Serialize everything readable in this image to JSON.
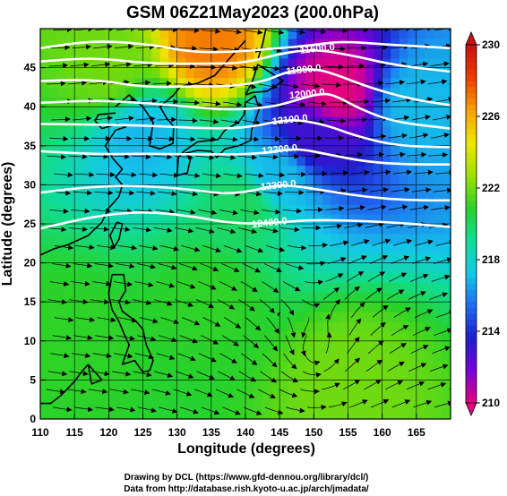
{
  "chart_data": {
    "type": "heatmap",
    "title": "GSM 06Z21May2023 (200.0hPa)",
    "xlabel": "Longitude (degrees)",
    "ylabel": "Latitude  (degrees)",
    "xlim": [
      110,
      170
    ],
    "ylim": [
      0,
      50
    ],
    "x_ticks": [
      "110",
      "115",
      "120",
      "125",
      "130",
      "135",
      "140",
      "145",
      "150",
      "155",
      "160",
      "165"
    ],
    "y_ticks": [
      "0",
      "5",
      "10",
      "15",
      "20",
      "25",
      "30",
      "35",
      "40",
      "45"
    ],
    "colorbar": {
      "min": 210,
      "max": 230,
      "ticks": [
        "210",
        "214",
        "218",
        "222",
        "226",
        "230"
      ],
      "palette": [
        "#e6007e",
        "#7a00d8",
        "#1e1ecc",
        "#1f6cf0",
        "#14c8e8",
        "#10dc96",
        "#28d22a",
        "#a0e000",
        "#ece600",
        "#f8a000",
        "#ec3c00",
        "#c81010"
      ]
    },
    "field_samples": [
      {
        "lon": 135,
        "lat": 48,
        "value": 227
      },
      {
        "lon": 120,
        "lat": 45,
        "value": 222
      },
      {
        "lon": 153,
        "lat": 42,
        "value": 210
      },
      {
        "lon": 150,
        "lat": 36,
        "value": 213
      },
      {
        "lon": 125,
        "lat": 36,
        "value": 217
      },
      {
        "lon": 165,
        "lat": 40,
        "value": 217
      },
      {
        "lon": 145,
        "lat": 31,
        "value": 217
      },
      {
        "lon": 140,
        "lat": 27,
        "value": 220
      },
      {
        "lon": 135,
        "lat": 15,
        "value": 221
      },
      {
        "lon": 155,
        "lat": 5,
        "value": 222
      },
      {
        "lon": 115,
        "lat": 10,
        "value": 221
      }
    ],
    "contour_labels": [
      "11600.0",
      "11800.0",
      "12000.0",
      "12100.0",
      "12200.0",
      "12300.0",
      "12400.0"
    ],
    "contours": [
      {
        "points": [
          [
            110,
            47.5
          ],
          [
            118,
            48.5
          ],
          [
            126,
            48
          ],
          [
            132,
            47
          ],
          [
            138,
            47
          ],
          [
            145,
            47.5
          ],
          [
            149,
            47.8
          ],
          [
            154,
            48.4
          ],
          [
            160,
            48
          ],
          [
            170,
            47.5
          ]
        ],
        "label": ""
      },
      {
        "points": [
          [
            110,
            45.8
          ],
          [
            118,
            46.3
          ],
          [
            126,
            45.5
          ],
          [
            134,
            45.5
          ],
          [
            140,
            45.6
          ],
          [
            145,
            46.8
          ],
          [
            150,
            47.4
          ],
          [
            156,
            46.5
          ],
          [
            162,
            45.3
          ],
          [
            170,
            44.5
          ]
        ],
        "label": "11600.0",
        "label_at": [
          150.5,
          47.5
        ]
      },
      {
        "points": [
          [
            110,
            43.3
          ],
          [
            118,
            43.5
          ],
          [
            125,
            42.5
          ],
          [
            132,
            42.6
          ],
          [
            138,
            42.6
          ],
          [
            143,
            43.3
          ],
          [
            146,
            44.5
          ],
          [
            150,
            44.9
          ],
          [
            153,
            44.2
          ],
          [
            158,
            42.5
          ],
          [
            164,
            41
          ],
          [
            170,
            40.2
          ]
        ],
        "label": "11800.0",
        "label_at": [
          148.5,
          44.8
        ]
      },
      {
        "points": [
          [
            110,
            40.5
          ],
          [
            118,
            40.8
          ],
          [
            125,
            40.5
          ],
          [
            132,
            40
          ],
          [
            137,
            39.6
          ],
          [
            142,
            39.8
          ],
          [
            145,
            40.2
          ],
          [
            148,
            41
          ],
          [
            151,
            41.7
          ],
          [
            153,
            41.5
          ],
          [
            157,
            39.6
          ],
          [
            162,
            38
          ],
          [
            170,
            37.2
          ]
        ],
        "label": "12000.0",
        "label_at": [
          149,
          41.7
        ]
      },
      {
        "points": [
          [
            110,
            37.8
          ],
          [
            118,
            37.7
          ],
          [
            125,
            37.6
          ],
          [
            132,
            37.3
          ],
          [
            138,
            37.2
          ],
          [
            142,
            37.6
          ],
          [
            145,
            38.2
          ],
          [
            148,
            38.3
          ],
          [
            152,
            37.6
          ],
          [
            156,
            36.3
          ],
          [
            162,
            35
          ],
          [
            170,
            34.8
          ]
        ],
        "label": "12100.0",
        "label_at": [
          146.5,
          38.4
        ]
      },
      {
        "points": [
          [
            110,
            34.3
          ],
          [
            118,
            33.9
          ],
          [
            125,
            34
          ],
          [
            132,
            33.9
          ],
          [
            138,
            33.9
          ],
          [
            142,
            34
          ],
          [
            145,
            34.4
          ],
          [
            148,
            34.6
          ],
          [
            152,
            33.9
          ],
          [
            158,
            32.9
          ],
          [
            164,
            32.6
          ],
          [
            170,
            32.6
          ]
        ],
        "label": "12200.0",
        "label_at": [
          145,
          34.6
        ]
      },
      {
        "points": [
          [
            110,
            29
          ],
          [
            118,
            29.8
          ],
          [
            125,
            29.9
          ],
          [
            132,
            29.4
          ],
          [
            137,
            28.8
          ],
          [
            141,
            29.2
          ],
          [
            144,
            29.9
          ],
          [
            147,
            29.9
          ],
          [
            152,
            29.2
          ],
          [
            158,
            28.4
          ],
          [
            164,
            28
          ],
          [
            170,
            28
          ]
        ],
        "label": "12300.0",
        "label_at": [
          144.8,
          30
        ]
      },
      {
        "points": [
          [
            110,
            24.4
          ],
          [
            118,
            26
          ],
          [
            125,
            26.6
          ],
          [
            132,
            26
          ],
          [
            137,
            25.2
          ],
          [
            141,
            25
          ],
          [
            145,
            25.2
          ],
          [
            150,
            25.5
          ],
          [
            156,
            25.4
          ],
          [
            163,
            25.1
          ],
          [
            170,
            24.6
          ]
        ],
        "label": "12400.0",
        "label_at": [
          143.5,
          25.2
        ]
      }
    ]
  },
  "credits": {
    "drawing": "Drawing by DCL (https://www.gfd-dennou.org/library/dcl/)",
    "data": "Data from http://database.rish.kyoto-u.ac.jp/arch/jmadata/"
  }
}
